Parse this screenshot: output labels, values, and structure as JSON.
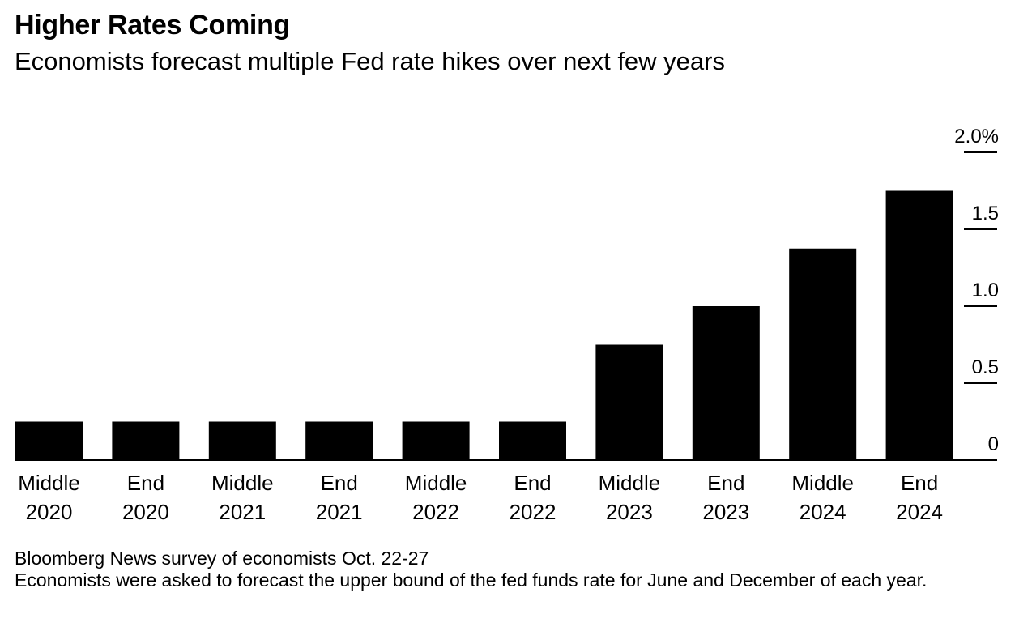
{
  "header": {
    "title": "Higher Rates Coming",
    "subtitle": "Economists forecast multiple Fed rate hikes over next few years"
  },
  "footer": {
    "source": "Bloomberg News survey of economists Oct. 22-27",
    "note": "Economists were asked to forecast the upper bound of the fed funds rate for June and December of each year."
  },
  "colors": {
    "bar": "#000000",
    "text": "#000000",
    "background": "#ffffff"
  },
  "chart_data": {
    "type": "bar",
    "categories": [
      [
        "Middle",
        "2020"
      ],
      [
        "End",
        "2020"
      ],
      [
        "Middle",
        "2021"
      ],
      [
        "End",
        "2021"
      ],
      [
        "Middle",
        "2022"
      ],
      [
        "End",
        "2022"
      ],
      [
        "Middle",
        "2023"
      ],
      [
        "End",
        "2023"
      ],
      [
        "Middle",
        "2024"
      ],
      [
        "End",
        "2024"
      ]
    ],
    "values": [
      0.25,
      0.25,
      0.25,
      0.25,
      0.25,
      0.25,
      0.75,
      1.0,
      1.375,
      1.75
    ],
    "ylim": [
      0,
      2.0
    ],
    "yticks": [
      0,
      0.5,
      1.0,
      1.5,
      2.0
    ],
    "ytick_labels": [
      "0",
      "0.5",
      "1.0",
      "1.5",
      "2.0%"
    ],
    "yaxis_side": "right",
    "grid": false,
    "legend": "none"
  }
}
